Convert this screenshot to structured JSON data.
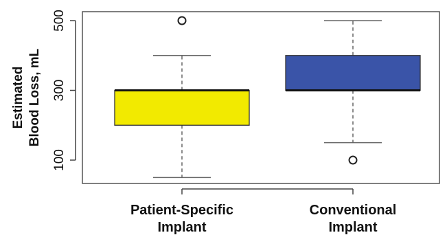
{
  "chart_data": {
    "type": "boxplot",
    "title": "",
    "ylabel_lines": [
      "Estimated",
      "Blood Loss, mL"
    ],
    "xlabel": "",
    "ylim": [
      35,
      530
    ],
    "yticks": [
      100,
      300,
      500
    ],
    "ytick_labels": [
      "100",
      "300",
      "500"
    ],
    "grid": false,
    "legend": "none",
    "categories": [
      {
        "label_lines": [
          "Patient-Specific",
          "Implant"
        ]
      },
      {
        "label_lines": [
          "Conventional",
          "Implant"
        ]
      }
    ],
    "series": [
      {
        "whisker_low": 50,
        "q1": 200,
        "median": 300,
        "q3": 300,
        "whisker_high": 400,
        "outliers": [
          500
        ],
        "color": "#F2EA00"
      },
      {
        "whisker_low": 150,
        "q1": 300,
        "median": 300,
        "q3": 400,
        "whisker_high": 500,
        "outliers": [
          100
        ],
        "color": "#3A54A8"
      }
    ]
  }
}
